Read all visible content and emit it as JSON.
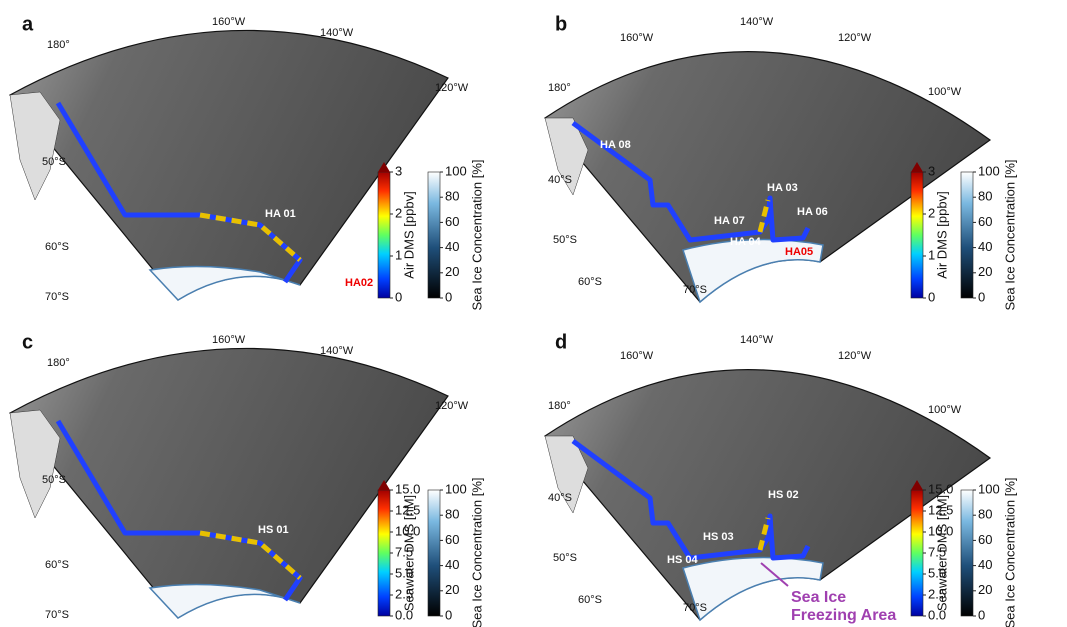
{
  "panels": [
    {
      "label": "a",
      "lon_labels": [
        "180°",
        "160°W",
        "140°W",
        "120°W"
      ],
      "lat_labels": [
        "50°S",
        "60°S",
        "70°S"
      ],
      "stations": [
        "HA 01",
        "HA02"
      ],
      "colorbars": [
        {
          "label": "Air DMS [ppbv]",
          "lim": [
            0,
            3
          ],
          "ticks": [
            0,
            1,
            2,
            3
          ]
        },
        {
          "label": "Sea Ice Concentration [%]",
          "lim": [
            0,
            100
          ],
          "ticks": [
            0,
            20,
            40,
            60,
            80,
            100
          ]
        }
      ]
    },
    {
      "label": "b",
      "lon_labels": [
        "180°",
        "160°W",
        "140°W",
        "120°W",
        "100°W"
      ],
      "lat_labels": [
        "40°S",
        "50°S",
        "60°S",
        "70°S"
      ],
      "stations": [
        "HA 08",
        "HA 07",
        "HA 03",
        "HA 06",
        "HA 04",
        "HA05"
      ],
      "colorbars": [
        {
          "label": "Air DMS [ppbv]",
          "lim": [
            0,
            3
          ],
          "ticks": [
            0,
            1,
            2,
            3
          ]
        },
        {
          "label": "Sea Ice Concentration [%]",
          "lim": [
            0,
            100
          ],
          "ticks": [
            0,
            20,
            40,
            60,
            80,
            100
          ]
        }
      ]
    },
    {
      "label": "c",
      "lon_labels": [
        "180°",
        "160°W",
        "140°W",
        "120°W"
      ],
      "lat_labels": [
        "50°S",
        "60°S",
        "70°S"
      ],
      "stations": [
        "HS 01"
      ],
      "colorbars": [
        {
          "label": "Seawater DMS [nM]",
          "lim": [
            0,
            15
          ],
          "ticks": [
            {
              "value": 0,
              "label": "0.0"
            },
            2.5,
            {
              "value": 5,
              "label": "5.0"
            },
            7.5,
            {
              "value": 10,
              "label": "10.0"
            },
            12.5,
            {
              "value": 15,
              "label": "15.0"
            }
          ]
        },
        {
          "label": "Sea Ice Concentration [%]",
          "lim": [
            0,
            100
          ],
          "ticks": [
            0,
            20,
            40,
            60,
            80,
            100
          ]
        }
      ]
    },
    {
      "label": "d",
      "lon_labels": [
        "180°",
        "160°W",
        "140°W",
        "120°W",
        "100°W"
      ],
      "lat_labels": [
        "40°S",
        "50°S",
        "60°S",
        "70°S"
      ],
      "stations": [
        "HS 02",
        "HS 03",
        "HS 04"
      ],
      "annotation": [
        "Sea Ice",
        "Freezing Area"
      ],
      "colorbars": [
        {
          "label": "Seawater DMS [nM]",
          "lim": [
            0,
            15
          ],
          "ticks": [
            {
              "value": 0,
              "label": "0.0"
            },
            2.5,
            {
              "value": 5,
              "label": "5.0"
            },
            7.5,
            {
              "value": 10,
              "label": "10.0"
            },
            12.5,
            {
              "value": 15,
              "label": "15.0"
            }
          ]
        },
        {
          "label": "Sea Ice Concentration [%]",
          "lim": [
            0,
            100
          ],
          "ticks": [
            0,
            20,
            40,
            60,
            80,
            100
          ]
        }
      ]
    }
  ]
}
